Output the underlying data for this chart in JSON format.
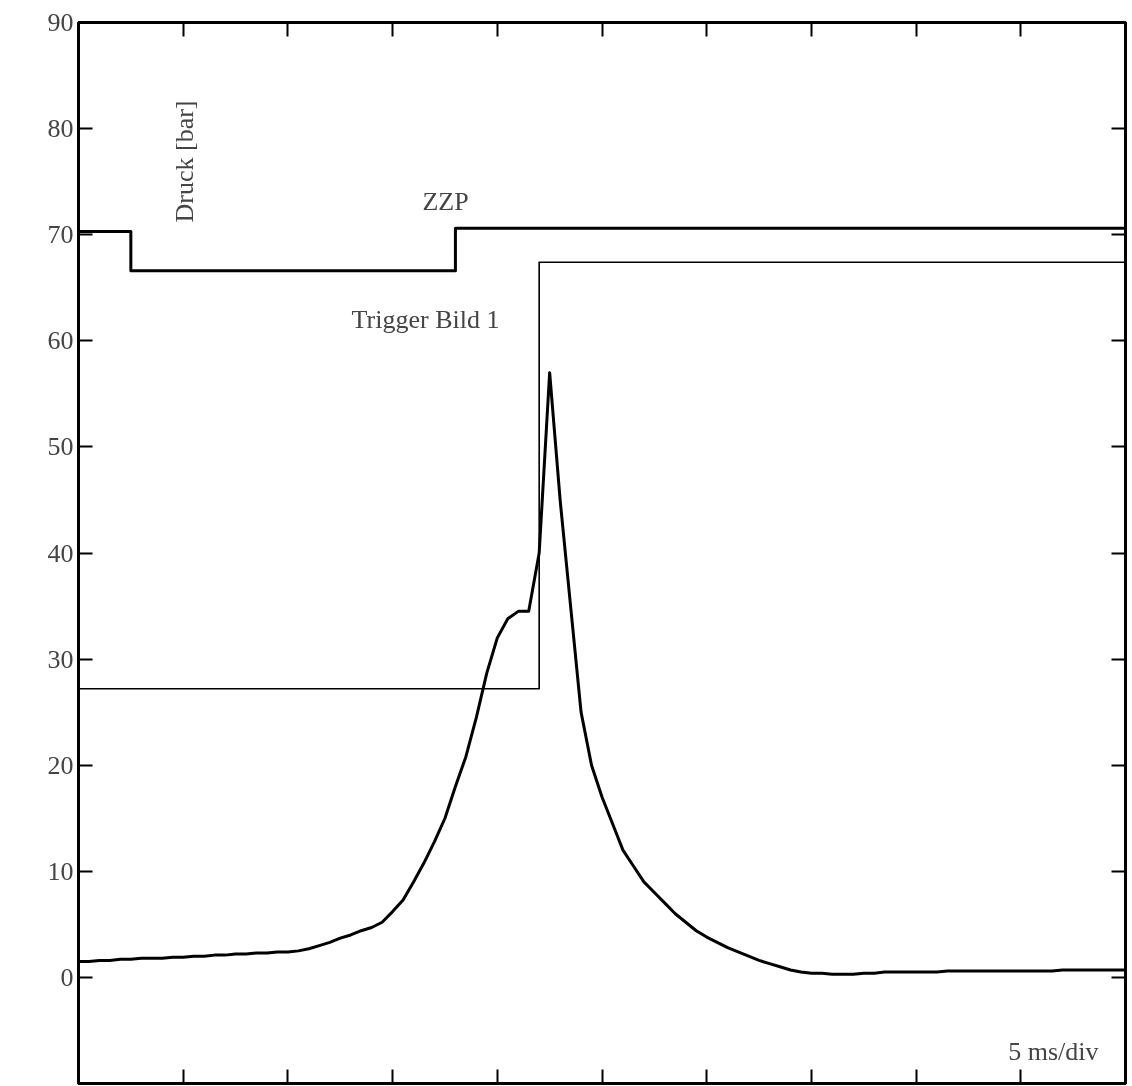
{
  "chart_data": {
    "type": "line",
    "ylabel": "Druck [bar]",
    "categories": [
      null,
      null,
      null,
      null,
      null,
      null,
      null,
      null,
      null,
      null,
      null,
      null,
      null,
      null,
      null,
      null,
      null,
      null,
      null,
      null,
      null,
      null,
      null,
      null,
      null,
      null,
      null,
      null,
      null,
      null,
      null,
      null,
      null,
      null,
      null,
      null,
      null,
      null,
      null,
      null,
      null,
      null,
      null,
      null,
      null,
      null,
      null,
      null,
      null,
      null,
      null,
      null,
      null,
      null,
      null,
      null,
      null,
      null,
      null,
      null,
      null,
      null,
      null,
      null,
      null,
      null,
      null,
      null,
      null,
      null,
      null,
      null,
      null,
      null,
      null,
      null,
      null,
      null,
      null,
      null,
      null,
      null,
      null,
      null,
      null,
      null,
      null,
      null,
      null,
      null,
      null,
      null,
      null,
      null,
      null,
      null,
      null,
      null,
      null,
      null,
      null
    ],
    "ylim": [
      -10,
      90
    ],
    "yticks": [
      0,
      10,
      20,
      30,
      40,
      50,
      60,
      70,
      80,
      90
    ],
    "grid": false,
    "tick_labels": "y",
    "series": [
      {
        "color": "#000000",
        "values": [
          1.5,
          1.5,
          1.6,
          1.6,
          1.7,
          1.7,
          1.8,
          1.8,
          1.8,
          1.9,
          1.9,
          2.0,
          2.0,
          2.1,
          2.1,
          2.2,
          2.2,
          2.3,
          2.3,
          2.4,
          2.4,
          2.5,
          2.7,
          3.0,
          3.3,
          3.7,
          4.0,
          4.4,
          4.7,
          5.2,
          6.2,
          7.3,
          9,
          10.8,
          12.8,
          15,
          18,
          20.8,
          24.5,
          28.7,
          32,
          33.8,
          34.5,
          34.5,
          40,
          57,
          45,
          35,
          25,
          20,
          17,
          14.5,
          12,
          10.5,
          9,
          8,
          7,
          6,
          5.2,
          4.4,
          3.8,
          3.3,
          2.8,
          2.4,
          2,
          1.6,
          1.3,
          1,
          0.7,
          0.5,
          0.4,
          0.4,
          0.3,
          0.3,
          0.3,
          0.4,
          0.4,
          0.5,
          0.5,
          0.5,
          0.5,
          0.5,
          0.5,
          0.6,
          0.6,
          0.6,
          0.6,
          0.6,
          0.6,
          0.6,
          0.6,
          0.6,
          0.6,
          0.6,
          0.7,
          0.7,
          0.7,
          0.7,
          0.7,
          0.7,
          0.7
        ]
      },
      {
        "type": "step",
        "color": "#000000",
        "values": [
          70.3,
          70.3,
          70.3,
          70.3,
          70.3,
          66.6,
          66.6,
          66.6,
          66.6,
          66.6,
          66.6,
          66.6,
          66.6,
          66.6,
          66.6,
          66.6,
          66.6,
          66.6,
          66.6,
          66.6,
          66.6,
          66.6,
          66.6,
          66.6,
          66.6,
          66.6,
          66.6,
          66.6,
          66.6,
          66.6,
          66.6,
          66.6,
          66.6,
          66.6,
          66.6,
          66.6,
          70.6,
          70.6,
          70.6,
          70.6,
          70.6,
          70.6,
          70.6,
          70.6,
          70.6,
          70.6,
          70.6,
          70.6,
          70.6,
          70.6,
          70.6,
          70.6,
          70.6,
          70.6,
          70.6,
          70.6,
          70.6,
          70.6,
          70.6,
          70.6,
          70.6,
          70.6,
          70.6,
          70.6,
          70.6,
          70.6,
          70.6,
          70.6,
          70.6,
          70.6,
          70.6,
          70.6,
          70.6,
          70.6,
          70.6,
          70.6,
          70.6,
          70.6,
          70.6,
          70.6,
          70.6,
          70.6,
          70.6,
          70.6,
          70.6,
          70.6,
          70.6,
          70.6,
          70.6,
          70.6,
          70.6,
          70.6,
          70.6,
          70.6,
          70.6,
          70.6,
          70.6,
          70.6,
          70.6,
          70.6,
          70.6
        ]
      },
      {
        "type": "step",
        "color": "#000000",
        "values": [
          27.2,
          27.2,
          27.2,
          27.2,
          27.2,
          27.2,
          27.2,
          27.2,
          27.2,
          27.2,
          27.2,
          27.2,
          27.2,
          27.2,
          27.2,
          27.2,
          27.2,
          27.2,
          27.2,
          27.2,
          27.2,
          27.2,
          27.2,
          27.2,
          27.2,
          27.2,
          27.2,
          27.2,
          27.2,
          27.2,
          27.2,
          27.2,
          27.2,
          27.2,
          27.2,
          27.2,
          27.2,
          27.2,
          27.2,
          27.2,
          27.2,
          27.2,
          27.2,
          27.2,
          67.4,
          67.4,
          67.4,
          67.4,
          67.4,
          67.4,
          67.4,
          67.4,
          67.4,
          67.4,
          67.4,
          67.4,
          67.4,
          67.4,
          67.4,
          67.4,
          67.4,
          67.4,
          67.4,
          67.4,
          67.4,
          67.4,
          67.4,
          67.4,
          67.4,
          67.4,
          67.4,
          67.4,
          67.4,
          67.4,
          67.4,
          67.4,
          67.4,
          67.4,
          67.4,
          67.4,
          67.4,
          67.4,
          67.4,
          67.4,
          67.4,
          67.4,
          67.4,
          67.4,
          67.4,
          67.4,
          67.4,
          67.4,
          67.4,
          67.4,
          67.4,
          67.4,
          67.4,
          67.4,
          67.4,
          67.4,
          67.4
        ]
      }
    ],
    "annotations": [
      "ZZP",
      "Trigger Bild 1",
      "5 ms/div"
    ]
  }
}
